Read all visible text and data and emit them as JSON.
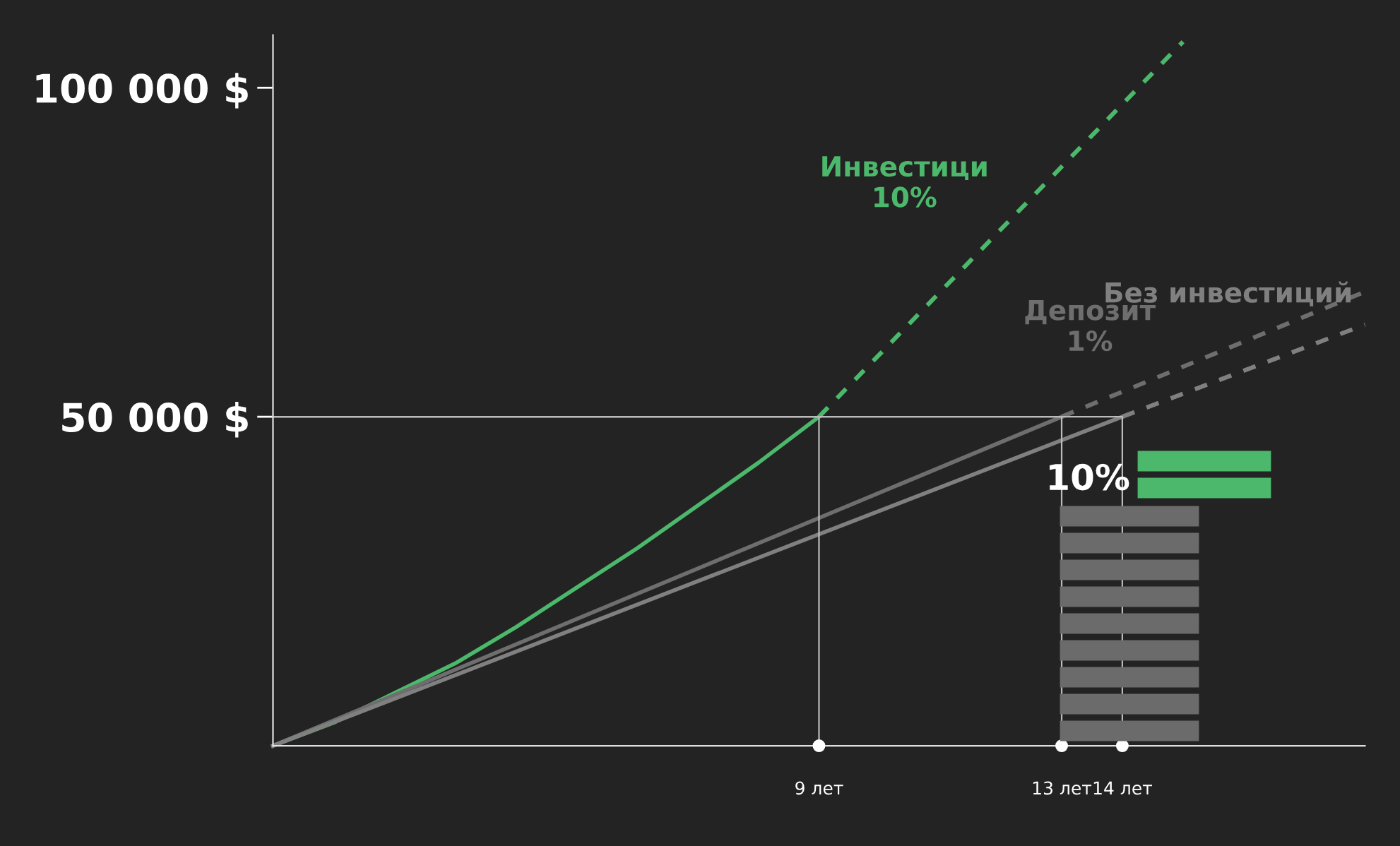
{
  "chart_data": {
    "type": "line",
    "series": [
      {
        "color": "#4cb86b",
        "line_style": "solid",
        "x": [
          0,
          1,
          2,
          3,
          4,
          5,
          6,
          7,
          8,
          9
        ],
        "values": [
          0,
          3500,
          8000,
          12500,
          18000,
          24000,
          30000,
          36500,
          43000,
          50000
        ]
      },
      {
        "name": "Инвестици\n10%",
        "color": "#4cb86b",
        "line_style": "dashed",
        "x": [
          9,
          15
        ],
        "values": [
          50000,
          107000
        ]
      },
      {
        "color": "#6e6e6e",
        "line_style": "solid",
        "x": [
          0,
          13
        ],
        "values": [
          0,
          50000
        ]
      },
      {
        "name": "Депозит\n1%",
        "color": "#6e6e6e",
        "line_style": "dashed",
        "x": [
          13,
          18
        ],
        "values": [
          50000,
          69000
        ]
      },
      {
        "color": "#808080",
        "line_style": "solid",
        "x": [
          0,
          14
        ],
        "values": [
          0,
          50000
        ]
      },
      {
        "name": "Без инвестиций",
        "color": "#808080",
        "line_style": "dashed",
        "x": [
          14,
          18
        ],
        "values": [
          50000,
          64000
        ]
      },
      {
        "color": "#bbbbbb",
        "line_style": "solid",
        "x": [
          0,
          9,
          9
        ],
        "values": [
          50000,
          50000,
          0
        ]
      },
      {
        "color": "#bbbbbb",
        "line_style": "solid",
        "x": [
          0,
          13,
          13
        ],
        "values": [
          50000,
          50000,
          0
        ]
      },
      {
        "color": "#bbbbbb",
        "line_style": "solid",
        "x": [
          0,
          14,
          14
        ],
        "values": [
          50000,
          50000,
          0
        ]
      },
      {
        "type": "scatter",
        "color": "#ffffff",
        "marker": "circle",
        "x": [
          9,
          13,
          14
        ],
        "values": [
          0,
          0,
          0
        ]
      }
    ],
    "xlim": [
      0,
      18
    ],
    "ylim": [
      0,
      108000
    ],
    "xticks": [
      {
        "value": 9,
        "label": "9 лет"
      },
      {
        "value": 13,
        "label": "13 лет"
      },
      {
        "value": 14,
        "label": "14 лет"
      }
    ],
    "yticks": [
      {
        "value": 50000,
        "label": "50 000 $"
      },
      {
        "value": 100000,
        "label": "100 000 $"
      }
    ],
    "annotations": [
      "10%"
    ],
    "grid": false,
    "legend": false,
    "marker": "none"
  }
}
